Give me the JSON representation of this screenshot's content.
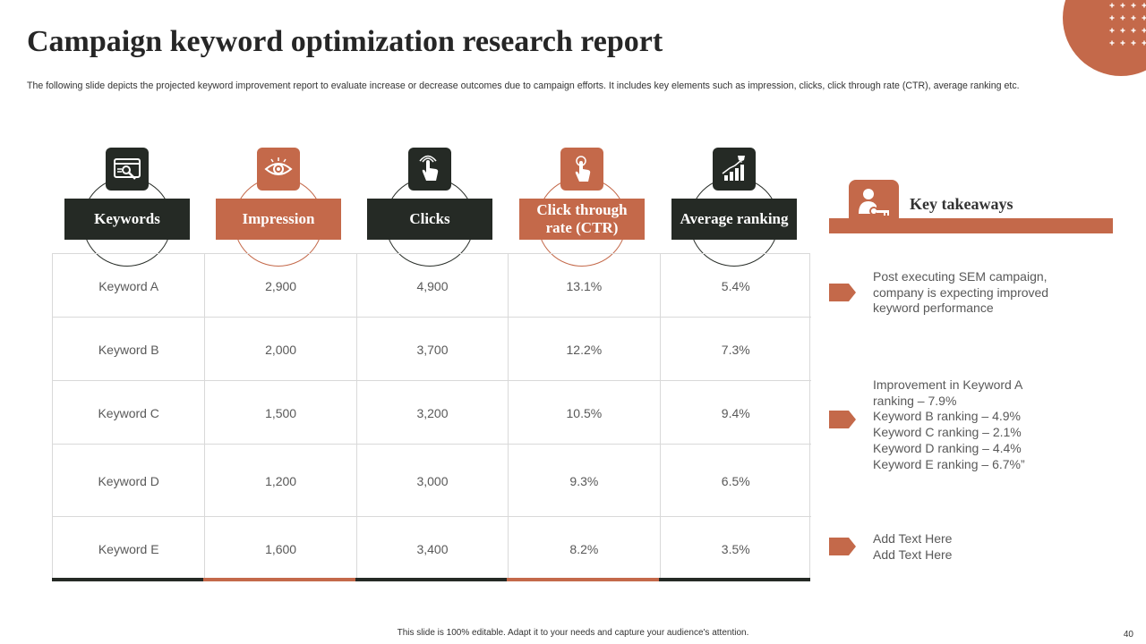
{
  "title": "Campaign keyword optimization research report",
  "subtitle": "The following slide depicts the projected keyword improvement report to evaluate increase or decrease outcomes due to campaign efforts. It includes key elements such as impression, clicks, click through rate (CTR), average ranking etc.",
  "colors": {
    "dark": "#252a25",
    "accent": "#c4694a",
    "grid": "#d9d9d9"
  },
  "columns": [
    {
      "label": "Keywords",
      "icon": "keyword-search-icon",
      "style": "dark"
    },
    {
      "label": "Impression",
      "icon": "eye-icon",
      "style": "orange"
    },
    {
      "label": "Clicks",
      "icon": "hand-tap-icon",
      "style": "dark"
    },
    {
      "label": "Click through rate (CTR)",
      "icon": "finger-click-icon",
      "style": "orange"
    },
    {
      "label": "Average ranking",
      "icon": "trophy-growth-chart-icon",
      "style": "dark"
    }
  ],
  "rows": [
    [
      "Keyword A",
      "2,900",
      "4,900",
      "13.1%",
      "5.4%"
    ],
    [
      "Keyword B",
      "2,000",
      "3,700",
      "12.2%",
      "7.3%"
    ],
    [
      "Keyword C",
      "1,500",
      "3,200",
      "10.5%",
      "9.4%"
    ],
    [
      "Keyword D",
      "1,200",
      "3,000",
      "9.3%",
      "6.5%"
    ],
    [
      "Keyword E",
      "1,600",
      "3,400",
      "8.2%",
      "3.5%"
    ]
  ],
  "takeaways": {
    "title": "Key takeaways",
    "icon": "person-key-icon",
    "items": [
      [
        "Post executing SEM campaign,",
        "company is expecting improved",
        "keyword performance"
      ],
      [
        "Improvement in Keyword A",
        "ranking – 7.9%",
        "Keyword B ranking – 4.9%",
        "Keyword C ranking – 2.1%",
        "Keyword D ranking – 4.4%",
        "Keyword E ranking – 6.7%”"
      ],
      [
        "Add Text Here",
        "Add Text Here"
      ]
    ]
  },
  "footer": "This slide is 100% editable. Adapt it to your needs and capture your audience's attention.",
  "page_number": "40"
}
